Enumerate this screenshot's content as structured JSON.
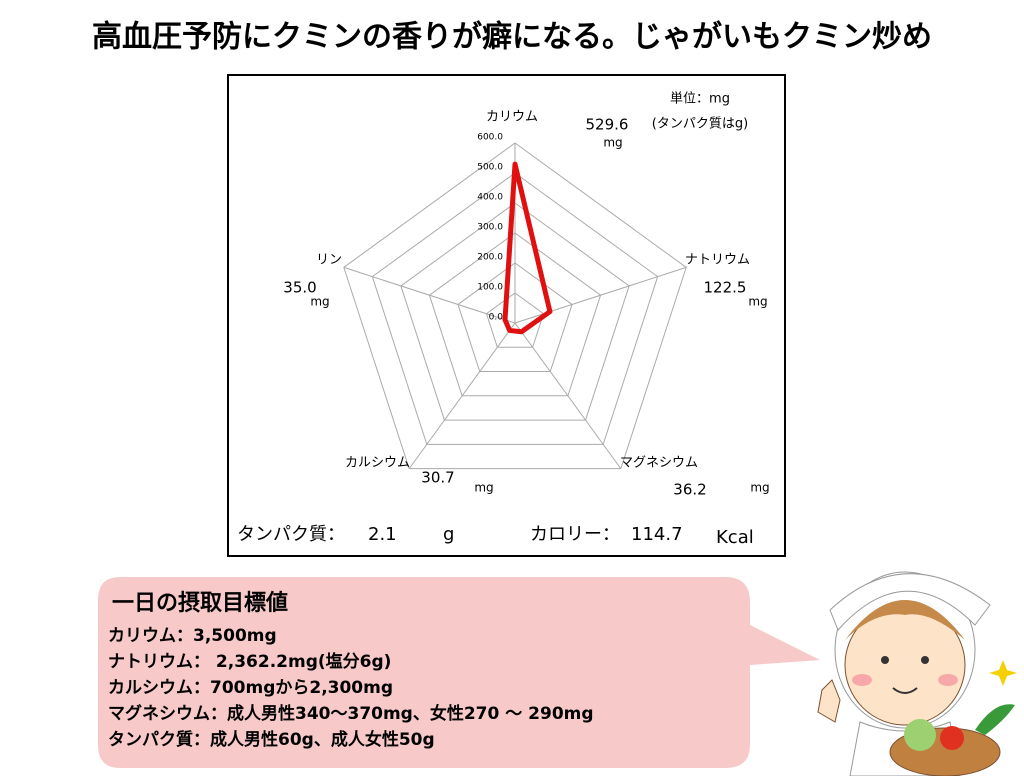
{
  "chart_data": {
    "type": "radar",
    "title": "高血圧予防にクミンの香りが癖になる。じゃがいもクミン炒め",
    "unit_note": "単位：mg",
    "unit_note_sub": "(タンパク質はg)",
    "categories": [
      "カリウム",
      "ナトリウム",
      "マグネシウム",
      "カルシウム",
      "リン"
    ],
    "values": [
      529.6,
      122.5,
      36.2,
      30.7,
      35.0
    ],
    "value_labels": [
      "529.6",
      "122.5",
      "36.2",
      "30.7",
      "35.0"
    ],
    "value_units": [
      "mg",
      "mg",
      "mg",
      "mg",
      "mg"
    ],
    "color": "#e01010",
    "ylim": [
      0,
      600
    ],
    "yticks": [
      {
        "value": 0,
        "label": "0.0"
      },
      {
        "value": 100,
        "label": "100.0"
      },
      {
        "value": 200,
        "label": "200.0"
      },
      {
        "value": 300,
        "label": "300.0"
      },
      {
        "value": 400,
        "label": "400.0"
      },
      {
        "value": 500,
        "label": "500.0"
      },
      {
        "value": 600,
        "label": "600.0"
      }
    ],
    "grid": true,
    "protein_label": "タンパク質：",
    "protein_value": 2.1,
    "protein_unit": "g",
    "calorie_label": "カロリー：",
    "calorie_value": 114.7,
    "calorie_unit": "Kcal"
  },
  "info_box": {
    "title": "一日の摂取目標値",
    "lines": [
      "カリウム：3,500mg",
      "ナトリウム： 2,362.2mg(塩分6g)",
      "カルシウム：700mgから2,300mg",
      "マグネシウム：成人男性340～370mg、女性270 ～ 290mg",
      "タンパク質：成人男性60g、成人女性50g"
    ]
  }
}
